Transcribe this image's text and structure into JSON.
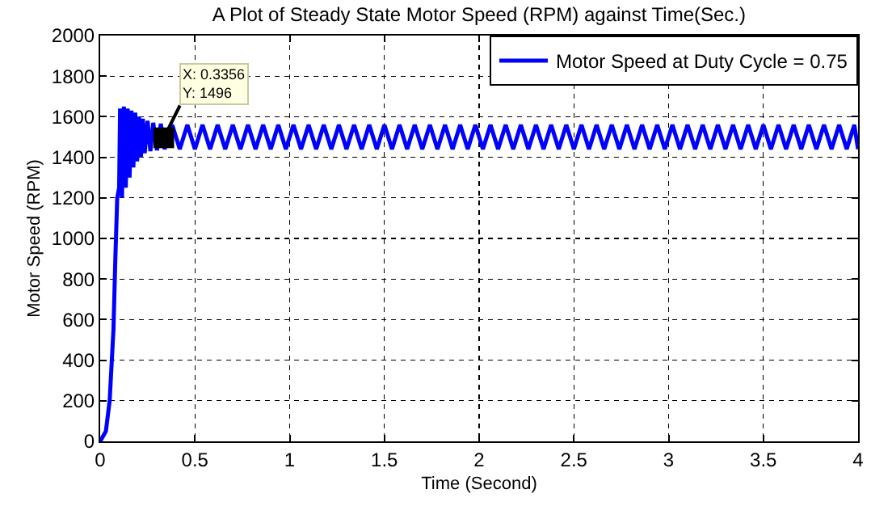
{
  "chart_data": {
    "type": "line",
    "title": "A Plot of Steady State Motor Speed (RPM) against Time(Sec.)",
    "xlabel": "Time (Second)",
    "ylabel": "Motor Speed (RPM)",
    "xlim": [
      0,
      4
    ],
    "xticks": [
      0,
      0.5,
      1,
      1.5,
      2,
      2.5,
      3,
      3.5,
      4
    ],
    "ylim": [
      0,
      2000
    ],
    "yticks": [
      0,
      200,
      400,
      600,
      800,
      1000,
      1200,
      1400,
      1600,
      1800,
      2000
    ],
    "grid": true,
    "legend": "top right",
    "line_style": "solid",
    "marker": "none",
    "annotations": [
      {
        "text": "X: 0.3356\nY: 1496",
        "x": 0.3356,
        "y": 1496
      }
    ],
    "series": [
      {
        "name": "Motor Speed at Duty Cycle = 0.75",
        "color": "#0000ff",
        "x": [
          0,
          0.03,
          0.05,
          0.07,
          0.08,
          0.09,
          0.1,
          0.105,
          0.115,
          0.125,
          0.135,
          0.145,
          0.155,
          0.165,
          0.175,
          0.185,
          0.195,
          0.205,
          0.215,
          0.225,
          0.235,
          0.25,
          0.265,
          0.28,
          0.3,
          0.32,
          0.34,
          0.38,
          0.42,
          0.46,
          0.5,
          0.54,
          0.58,
          0.62,
          0.66,
          0.7,
          0.74,
          0.78,
          0.82,
          0.86,
          0.9,
          0.94,
          0.98,
          1.02,
          1.06,
          1.1,
          1.14,
          1.18,
          1.22,
          1.26,
          1.3,
          1.34,
          1.38,
          1.42,
          1.46,
          1.5,
          1.54,
          1.58,
          1.62,
          1.66,
          1.7,
          1.74,
          1.78,
          1.82,
          1.86,
          1.9,
          1.94,
          1.98,
          2.02,
          2.06,
          2.1,
          2.14,
          2.18,
          2.22,
          2.26,
          2.3,
          2.34,
          2.38,
          2.42,
          2.46,
          2.5,
          2.54,
          2.58,
          2.62,
          2.66,
          2.7,
          2.74,
          2.78,
          2.82,
          2.86,
          2.9,
          2.94,
          2.98,
          3.02,
          3.06,
          3.1,
          3.14,
          3.18,
          3.22,
          3.26,
          3.3,
          3.34,
          3.38,
          3.42,
          3.46,
          3.5,
          3.54,
          3.58,
          3.62,
          3.66,
          3.7,
          3.74,
          3.78,
          3.82,
          3.86,
          3.9,
          3.94,
          3.98,
          4
        ],
        "values": [
          0,
          50,
          200,
          550,
          900,
          1200,
          1250,
          1640,
          1200,
          1650,
          1250,
          1640,
          1300,
          1630,
          1350,
          1620,
          1380,
          1600,
          1400,
          1590,
          1420,
          1580,
          1430,
          1570,
          1435,
          1565,
          1440,
          1560,
          1440,
          1560,
          1440,
          1560,
          1440,
          1560,
          1440,
          1560,
          1440,
          1560,
          1440,
          1560,
          1440,
          1560,
          1440,
          1560,
          1440,
          1560,
          1440,
          1560,
          1440,
          1560,
          1440,
          1560,
          1440,
          1560,
          1440,
          1560,
          1440,
          1560,
          1440,
          1560,
          1440,
          1560,
          1440,
          1560,
          1440,
          1560,
          1440,
          1560,
          1440,
          1560,
          1440,
          1560,
          1440,
          1560,
          1440,
          1560,
          1440,
          1560,
          1440,
          1560,
          1440,
          1560,
          1440,
          1560,
          1440,
          1560,
          1440,
          1560,
          1440,
          1560,
          1440,
          1560,
          1440,
          1560,
          1440,
          1560,
          1440,
          1560,
          1440,
          1560,
          1440,
          1560,
          1440,
          1560,
          1440,
          1560,
          1440,
          1560,
          1440,
          1560,
          1440,
          1560,
          1440,
          1560,
          1440,
          1560,
          1440,
          1560,
          1440
        ]
      }
    ]
  }
}
